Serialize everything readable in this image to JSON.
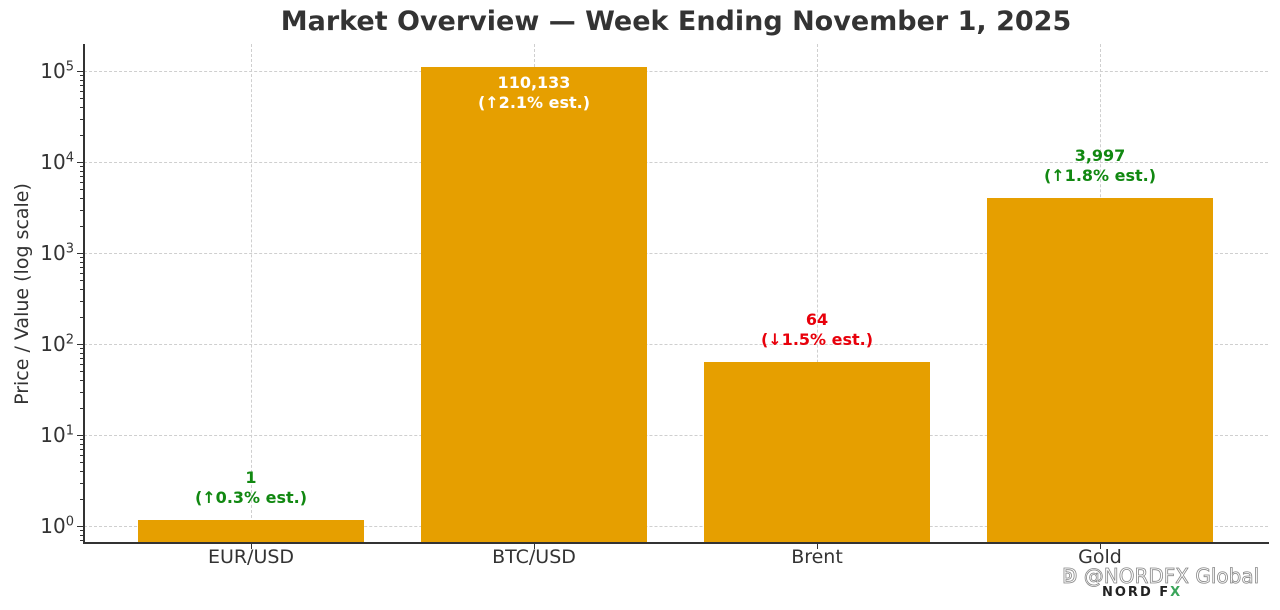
{
  "chart_data": {
    "type": "bar",
    "title": "Market Overview — Week Ending November 1, 2025",
    "xlabel": "",
    "ylabel": "Price / Value (log scale)",
    "yscale": "log",
    "ylim": [
      0.65,
      198000
    ],
    "grid": true,
    "categories": [
      "EUR/USD",
      "BTC/USD",
      "Brent",
      "Gold"
    ],
    "values": [
      1.16,
      110133,
      64,
      3997
    ],
    "bar_color": "#E69F00",
    "yticks": [
      {
        "base": "10",
        "exp": "0"
      },
      {
        "base": "10",
        "exp": "1"
      },
      {
        "base": "10",
        "exp": "2"
      },
      {
        "base": "10",
        "exp": "3"
      },
      {
        "base": "10",
        "exp": "4"
      },
      {
        "base": "10",
        "exp": "5"
      }
    ],
    "annotations": [
      {
        "category": "EUR/USD",
        "value_text": "1",
        "change_text": "(↑0.3% est.)",
        "color": "#118811",
        "position": "above"
      },
      {
        "category": "BTC/USD",
        "value_text": "110,133",
        "change_text": "(↑2.1% est.)",
        "color": "#ffffff",
        "position": "inside"
      },
      {
        "category": "Brent",
        "value_text": "64",
        "change_text": "(↓1.5% est.)",
        "color": "#e8000b",
        "position": "above"
      },
      {
        "category": "Gold",
        "value_text": "3,997",
        "change_text": "(↑1.8% est.)",
        "color": "#118811",
        "position": "above"
      }
    ]
  },
  "watermark": {
    "handle": "@NORDFX Global",
    "logo_text": "NORD F",
    "logo_x": "X"
  }
}
